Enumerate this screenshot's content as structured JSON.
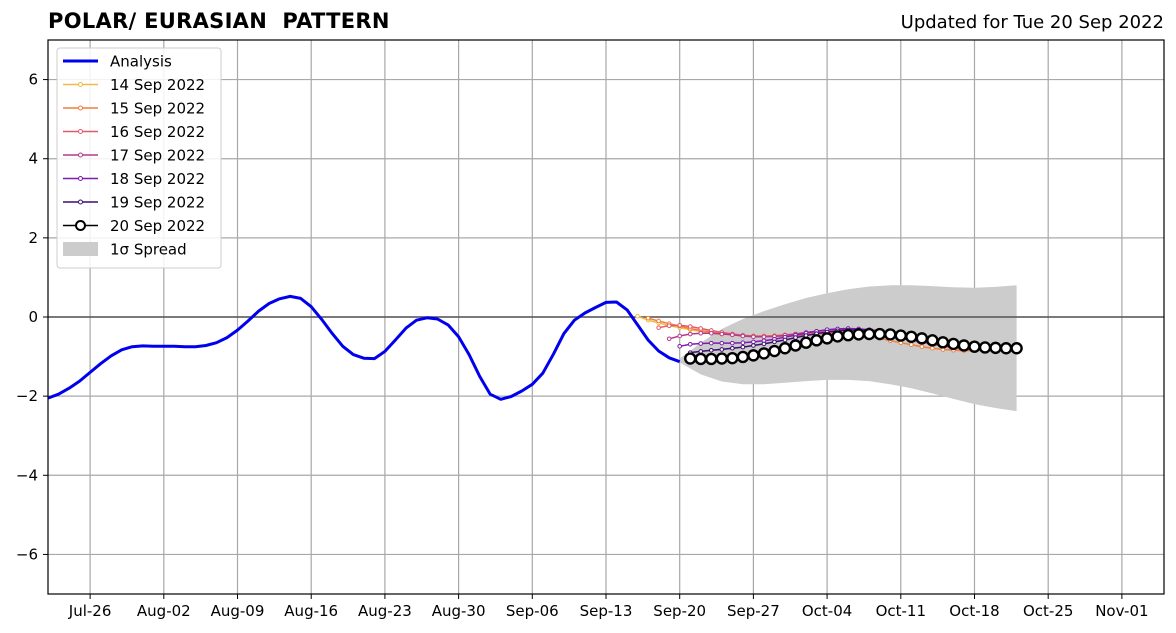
{
  "chart_data": {
    "type": "line",
    "title": "POLAR/ EURASIAN  PATTERN",
    "subtitle": "Updated for Tue 20 Sep 2022",
    "xlabel": "",
    "ylabel": "",
    "x_axis": {
      "start": "2022-07-22",
      "end": "2022-11-05",
      "ticks": [
        {
          "date": "2022-07-26",
          "label": "Jul-26"
        },
        {
          "date": "2022-08-02",
          "label": "Aug-02"
        },
        {
          "date": "2022-08-09",
          "label": "Aug-09"
        },
        {
          "date": "2022-08-16",
          "label": "Aug-16"
        },
        {
          "date": "2022-08-23",
          "label": "Aug-23"
        },
        {
          "date": "2022-08-30",
          "label": "Aug-30"
        },
        {
          "date": "2022-09-06",
          "label": "Sep-06"
        },
        {
          "date": "2022-09-13",
          "label": "Sep-13"
        },
        {
          "date": "2022-09-20",
          "label": "Sep-20"
        },
        {
          "date": "2022-09-27",
          "label": "Sep-27"
        },
        {
          "date": "2022-10-04",
          "label": "Oct-04"
        },
        {
          "date": "2022-10-11",
          "label": "Oct-11"
        },
        {
          "date": "2022-10-18",
          "label": "Oct-18"
        },
        {
          "date": "2022-10-25",
          "label": "Oct-25"
        },
        {
          "date": "2022-11-01",
          "label": "Nov-01"
        }
      ]
    },
    "y_axis": {
      "ylim": [
        -7,
        7
      ],
      "ticks": [
        {
          "value": -6,
          "label": "−6"
        },
        {
          "value": -4,
          "label": "−4"
        },
        {
          "value": -2,
          "label": "−2"
        },
        {
          "value": 0,
          "label": "0"
        },
        {
          "value": 2,
          "label": "2"
        },
        {
          "value": 4,
          "label": "4"
        },
        {
          "value": 6,
          "label": "6"
        }
      ]
    },
    "grid": true,
    "legend_position": "top-left",
    "series": [
      {
        "name": "Analysis",
        "color": "#0000ee",
        "style": "thick-line",
        "x": [
          "2022-07-22",
          "2022-07-23",
          "2022-07-24",
          "2022-07-25",
          "2022-07-26",
          "2022-07-27",
          "2022-07-28",
          "2022-07-29",
          "2022-07-30",
          "2022-07-31",
          "2022-08-01",
          "2022-08-02",
          "2022-08-03",
          "2022-08-04",
          "2022-08-05",
          "2022-08-06",
          "2022-08-07",
          "2022-08-08",
          "2022-08-09",
          "2022-08-10",
          "2022-08-11",
          "2022-08-12",
          "2022-08-13",
          "2022-08-14",
          "2022-08-15",
          "2022-08-16",
          "2022-08-17",
          "2022-08-18",
          "2022-08-19",
          "2022-08-20",
          "2022-08-21",
          "2022-08-22",
          "2022-08-23",
          "2022-08-24",
          "2022-08-25",
          "2022-08-26",
          "2022-08-27",
          "2022-08-28",
          "2022-08-29",
          "2022-08-30",
          "2022-08-31",
          "2022-09-01",
          "2022-09-02",
          "2022-09-03",
          "2022-09-04",
          "2022-09-05",
          "2022-09-06",
          "2022-09-07",
          "2022-09-08",
          "2022-09-09",
          "2022-09-10",
          "2022-09-11",
          "2022-09-12",
          "2022-09-13",
          "2022-09-14",
          "2022-09-15",
          "2022-09-16",
          "2022-09-17",
          "2022-09-18",
          "2022-09-19",
          "2022-09-20"
        ],
        "values": [
          -2.05,
          -1.95,
          -1.8,
          -1.62,
          -1.4,
          -1.18,
          -0.98,
          -0.83,
          -0.75,
          -0.73,
          -0.74,
          -0.74,
          -0.74,
          -0.75,
          -0.75,
          -0.72,
          -0.65,
          -0.52,
          -0.33,
          -0.1,
          0.15,
          0.34,
          0.46,
          0.52,
          0.47,
          0.26,
          -0.06,
          -0.42,
          -0.74,
          -0.95,
          -1.04,
          -1.05,
          -0.87,
          -0.58,
          -0.28,
          -0.08,
          -0.02,
          -0.05,
          -0.2,
          -0.5,
          -0.95,
          -1.5,
          -1.95,
          -2.08,
          -2.01,
          -1.87,
          -1.7,
          -1.42,
          -0.94,
          -0.42,
          -0.08,
          0.1,
          0.24,
          0.37,
          0.38,
          0.18,
          -0.2,
          -0.58,
          -0.86,
          -1.03,
          -1.13
        ]
      },
      {
        "name": "14 Sep 2022",
        "color": "#f4b942",
        "start": "2022-09-16",
        "values": [
          0.02,
          -0.08,
          -0.15,
          -0.22,
          -0.27,
          -0.32,
          -0.36,
          -0.4,
          -0.43,
          -0.45,
          -0.47,
          -0.48,
          -0.49,
          -0.49,
          -0.49,
          -0.49,
          -0.48
        ]
      },
      {
        "name": "15 Sep 2022",
        "color": "#f07f3c",
        "start": "2022-09-17",
        "values": [
          -0.03,
          -0.1,
          -0.17,
          -0.23,
          -0.29,
          -0.34,
          -0.38,
          -0.42,
          -0.45,
          -0.47,
          -0.48,
          -0.48,
          -0.47,
          -0.45,
          -0.43,
          -0.41,
          -0.39,
          -0.38,
          -0.38,
          -0.4,
          -0.43,
          -0.48,
          -0.54,
          -0.6,
          -0.65,
          -0.7,
          -0.75,
          -0.79,
          -0.82,
          -0.84,
          -0.85,
          -0.85
        ]
      },
      {
        "name": "16 Sep 2022",
        "color": "#e05a6a",
        "start": "2022-09-18",
        "values": [
          -0.27,
          -0.22,
          -0.21,
          -0.24,
          -0.29,
          -0.34,
          -0.39,
          -0.43,
          -0.46,
          -0.48,
          -0.49,
          -0.49,
          -0.48,
          -0.47,
          -0.45,
          -0.43,
          -0.41,
          -0.4,
          -0.39,
          -0.4,
          -0.42,
          -0.45,
          -0.49,
          -0.54,
          -0.59,
          -0.64,
          -0.69,
          -0.74,
          -0.78,
          -0.81,
          -0.83,
          -0.84,
          -0.84
        ]
      },
      {
        "name": "17 Sep 2022",
        "color": "#b63a8c",
        "start": "2022-09-19",
        "values": [
          -0.55,
          -0.48,
          -0.43,
          -0.41,
          -0.41,
          -0.43,
          -0.45,
          -0.48,
          -0.5,
          -0.5,
          -0.49,
          -0.46,
          -0.43,
          -0.39,
          -0.36,
          -0.33,
          -0.31,
          -0.31,
          -0.32,
          -0.35,
          -0.39,
          -0.44,
          -0.5,
          -0.56,
          -0.62,
          -0.67,
          -0.71,
          -0.75,
          -0.78,
          -0.8,
          -0.81,
          -0.82
        ]
      },
      {
        "name": "18 Sep 2022",
        "color": "#7d1db0",
        "start": "2022-09-20",
        "values": [
          -0.74,
          -0.69,
          -0.67,
          -0.66,
          -0.66,
          -0.66,
          -0.65,
          -0.63,
          -0.6,
          -0.56,
          -0.51,
          -0.46,
          -0.41,
          -0.36,
          -0.32,
          -0.3,
          -0.29,
          -0.3,
          -0.32,
          -0.35,
          -0.39,
          -0.44,
          -0.5,
          -0.56,
          -0.62,
          -0.68,
          -0.73,
          -0.77,
          -0.8,
          -0.82,
          -0.83,
          -0.83
        ]
      },
      {
        "name": "19 Sep 2022",
        "color": "#3b0f70",
        "start": "2022-09-21",
        "values": [
          -0.9,
          -0.87,
          -0.84,
          -0.82,
          -0.79,
          -0.76,
          -0.72,
          -0.68,
          -0.63,
          -0.58,
          -0.52,
          -0.47,
          -0.42,
          -0.38,
          -0.35,
          -0.33,
          -0.33,
          -0.34,
          -0.36,
          -0.4,
          -0.44,
          -0.49,
          -0.55,
          -0.6,
          -0.65,
          -0.7,
          -0.74,
          -0.78,
          -0.8,
          -0.82,
          -0.83,
          -0.83
        ]
      },
      {
        "name": "20 Sep 2022",
        "color": "#000000",
        "style": "open-circles",
        "start": "2022-09-21",
        "values": [
          -1.05,
          -1.06,
          -1.06,
          -1.05,
          -1.04,
          -1.01,
          -0.97,
          -0.92,
          -0.86,
          -0.79,
          -0.72,
          -0.65,
          -0.59,
          -0.54,
          -0.49,
          -0.46,
          -0.44,
          -0.43,
          -0.43,
          -0.44,
          -0.47,
          -0.5,
          -0.54,
          -0.59,
          -0.64,
          -0.68,
          -0.72,
          -0.75,
          -0.77,
          -0.78,
          -0.79,
          -0.79
        ]
      }
    ],
    "spread": {
      "name": "1σ Spread",
      "color": "#cccccc",
      "x": [
        "2022-09-20",
        "2022-09-22",
        "2022-09-24",
        "2022-09-26",
        "2022-09-28",
        "2022-09-30",
        "2022-10-02",
        "2022-10-04",
        "2022-10-06",
        "2022-10-08",
        "2022-10-10",
        "2022-10-12",
        "2022-10-14",
        "2022-10-16",
        "2022-10-18",
        "2022-10-20",
        "2022-10-22"
      ],
      "upper": [
        -1.05,
        -0.65,
        -0.3,
        -0.05,
        0.15,
        0.32,
        0.48,
        0.6,
        0.7,
        0.77,
        0.8,
        0.8,
        0.78,
        0.75,
        0.74,
        0.76,
        0.8
      ],
      "lower": [
        -1.15,
        -1.45,
        -1.63,
        -1.7,
        -1.7,
        -1.66,
        -1.62,
        -1.59,
        -1.59,
        -1.62,
        -1.7,
        -1.8,
        -1.93,
        -2.07,
        -2.2,
        -2.3,
        -2.38
      ]
    }
  }
}
